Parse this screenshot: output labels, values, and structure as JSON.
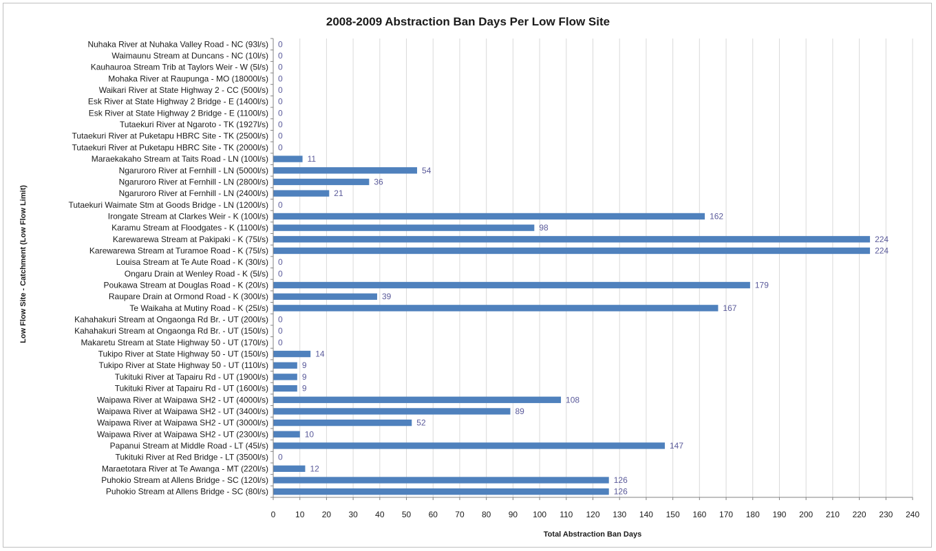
{
  "chart_data": {
    "type": "bar",
    "orientation": "horizontal",
    "title": "2008-2009 Abstraction Ban Days Per Low Flow Site",
    "xlabel": "Total Abstraction Ban Days",
    "ylabel": "Low Flow Site - Catchment (Low Flow Limit)",
    "xlim": [
      0,
      240
    ],
    "x_ticks": [
      0,
      10,
      20,
      30,
      40,
      50,
      60,
      70,
      80,
      90,
      100,
      110,
      120,
      130,
      140,
      150,
      160,
      170,
      180,
      190,
      200,
      210,
      220,
      230,
      240
    ],
    "grid": true,
    "legend": "none",
    "bar_color": "#4f81bd",
    "categories": [
      "Nuhaka River at Nuhaka Valley Road - NC (93l/s)",
      "Waimaunu Stream at Duncans - NC (10l/s)",
      "Kauhauroa Stream Trib  at Taylors Weir - W (5l/s)",
      "Mohaka River at Raupunga - MO (18000l/s)",
      "Waikari River at State Highway 2 - CC (500l/s)",
      "Esk River at State Highway 2 Bridge - E (1400l/s)",
      "Esk River at State Highway 2 Bridge - E (1100l/s)",
      "Tutaekuri River at Ngaroto - TK (1927l/s)",
      "Tutaekuri River at Puketapu HBRC Site - TK (2500l/s)",
      "Tutaekuri River at Puketapu HBRC Site - TK (2000l/s)",
      "Maraekakaho Stream at Taits Road - LN (100l/s)",
      "Ngaruroro River at Fernhill - LN (5000l/s)",
      "Ngaruroro River at Fernhill - LN (2800l/s)",
      "Ngaruroro River at Fernhill - LN (2400l/s)",
      "Tutaekuri Waimate Stm at Goods Bridge - LN (1200l/s)",
      "Irongate Stream at Clarkes Weir - K (100l/s)",
      "Karamu Stream at Floodgates - K (1100l/s)",
      "Karewarewa Stream at Pakipaki - K (75l/s)",
      "Karewarewa Stream at Turamoe Road - K (75l/s)",
      "Louisa Stream at Te Aute Road - K (30l/s)",
      "Ongaru Drain at Wenley Road - K (5l/s)",
      "Poukawa Stream at Douglas Road - K (20l/s)",
      "Raupare Drain at Ormond Road - K (300l/s)",
      "Te Waikaha at Mutiny Road - K (25l/s)",
      "Kahahakuri Stream at Ongaonga Rd Br. - UT (200l/s)",
      "Kahahakuri Stream at Ongaonga Rd Br. - UT (150l/s)",
      "Makaretu Stream at State Highway 50 - UT (170l/s)",
      "Tukipo River at State Highway 50 - UT (150l/s)",
      "Tukipo River at State Highway 50 - UT (110l/s)",
      "Tukituki River at Tapairu Rd - UT (1900l/s)",
      "Tukituki River at Tapairu Rd - UT (1600l/s)",
      "Waipawa River at Waipawa SH2 - UT (4000l/s)",
      "Waipawa River at Waipawa SH2 - UT (3400l/s)",
      "Waipawa River at Waipawa SH2 - UT (3000l/s)",
      "Waipawa River at Waipawa SH2 - UT (2300l/s)",
      "Papanui Stream at Middle Road - LT (45l/s)",
      "Tukituki River at Red Bridge - LT (3500l/s)",
      "Maraetotara River at Te Awanga - MT (220l/s)",
      "Puhokio Stream at Allens Bridge - SC (120l/s)",
      "Puhokio Stream at Allens Bridge - SC (80l/s)"
    ],
    "values": [
      0,
      0,
      0,
      0,
      0,
      0,
      0,
      0,
      0,
      0,
      11,
      54,
      36,
      21,
      0,
      162,
      98,
      224,
      224,
      0,
      0,
      179,
      39,
      167,
      0,
      0,
      0,
      14,
      9,
      9,
      9,
      108,
      89,
      52,
      10,
      147,
      0,
      12,
      126,
      126
    ]
  }
}
